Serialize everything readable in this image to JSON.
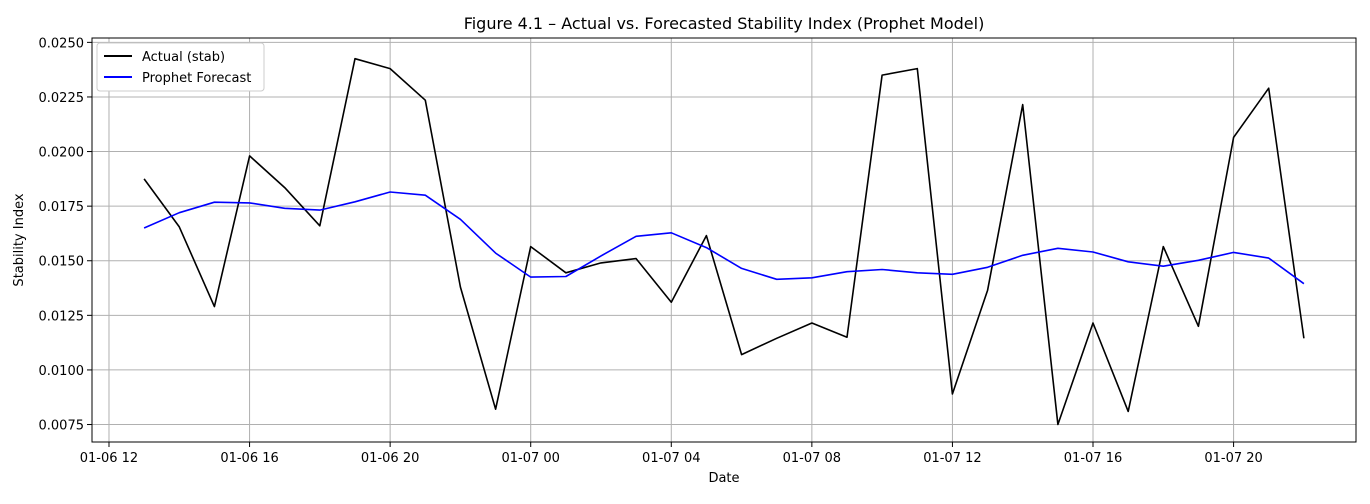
{
  "chart_data": {
    "type": "line",
    "title": "Figure 4.1 – Actual vs. Forecasted Stability Index (Prophet Model)",
    "xlabel": "Date",
    "ylabel": "Stability Index",
    "x_axis_type": "datetime",
    "xlim": [
      "2025-01-06T11:31",
      "2025-01-07T23:29"
    ],
    "ylim": [
      0.0067,
      0.0252
    ],
    "x_ticks": [
      {
        "value": "2025-01-06T12:00",
        "label": "01-06 12"
      },
      {
        "value": "2025-01-06T16:00",
        "label": "01-06 16"
      },
      {
        "value": "2025-01-06T20:00",
        "label": "01-06 20"
      },
      {
        "value": "2025-01-07T00:00",
        "label": "01-07 00"
      },
      {
        "value": "2025-01-07T04:00",
        "label": "01-07 04"
      },
      {
        "value": "2025-01-07T08:00",
        "label": "01-07 08"
      },
      {
        "value": "2025-01-07T12:00",
        "label": "01-07 12"
      },
      {
        "value": "2025-01-07T16:00",
        "label": "01-07 16"
      },
      {
        "value": "2025-01-07T20:00",
        "label": "01-07 20"
      }
    ],
    "y_ticks": [
      {
        "value": 0.0075,
        "label": "0.0075"
      },
      {
        "value": 0.01,
        "label": "0.0100"
      },
      {
        "value": 0.0125,
        "label": "0.0125"
      },
      {
        "value": 0.015,
        "label": "0.0150"
      },
      {
        "value": 0.0175,
        "label": "0.0175"
      },
      {
        "value": 0.02,
        "label": "0.0200"
      },
      {
        "value": 0.0225,
        "label": "0.0225"
      },
      {
        "value": 0.025,
        "label": "0.0250"
      }
    ],
    "grid": true,
    "legend_position": "upper-left",
    "x": [
      "2025-01-06T13:00",
      "2025-01-06T14:00",
      "2025-01-06T15:00",
      "2025-01-06T16:00",
      "2025-01-06T17:00",
      "2025-01-06T18:00",
      "2025-01-06T19:00",
      "2025-01-06T20:00",
      "2025-01-06T21:00",
      "2025-01-06T22:00",
      "2025-01-06T23:00",
      "2025-01-07T00:00",
      "2025-01-07T01:00",
      "2025-01-07T02:00",
      "2025-01-07T03:00",
      "2025-01-07T04:00",
      "2025-01-07T05:00",
      "2025-01-07T06:00",
      "2025-01-07T07:00",
      "2025-01-07T08:00",
      "2025-01-07T09:00",
      "2025-01-07T10:00",
      "2025-01-07T11:00",
      "2025-01-07T12:00",
      "2025-01-07T13:00",
      "2025-01-07T14:00",
      "2025-01-07T15:00",
      "2025-01-07T16:00",
      "2025-01-07T17:00",
      "2025-01-07T18:00",
      "2025-01-07T19:00",
      "2025-01-07T20:00",
      "2025-01-07T21:00",
      "2025-01-07T22:00"
    ],
    "series": [
      {
        "name": "Actual (stab)",
        "color": "#000000",
        "values": [
          0.01875,
          0.01655,
          0.0129,
          0.0198,
          0.01835,
          0.0166,
          0.02425,
          0.0238,
          0.02235,
          0.0138,
          0.0082,
          0.01565,
          0.01445,
          0.0149,
          0.0151,
          0.0131,
          0.01615,
          0.0107,
          0.01145,
          0.01215,
          0.0115,
          0.0235,
          0.0238,
          0.0089,
          0.01365,
          0.02215,
          0.0075,
          0.01215,
          0.0081,
          0.01565,
          0.012,
          0.02065,
          0.0229,
          0.01145
        ]
      },
      {
        "name": "Prophet Forecast",
        "color": "#0000ff",
        "values": [
          0.0165,
          0.0172,
          0.01768,
          0.01765,
          0.0174,
          0.01732,
          0.0177,
          0.01815,
          0.018,
          0.0169,
          0.01535,
          0.01425,
          0.01428,
          0.01522,
          0.01612,
          0.01628,
          0.0156,
          0.01465,
          0.01415,
          0.01422,
          0.0145,
          0.0146,
          0.01445,
          0.01438,
          0.0147,
          0.01525,
          0.01557,
          0.0154,
          0.01495,
          0.01475,
          0.01502,
          0.01538,
          0.01512,
          0.01395
        ]
      }
    ]
  }
}
